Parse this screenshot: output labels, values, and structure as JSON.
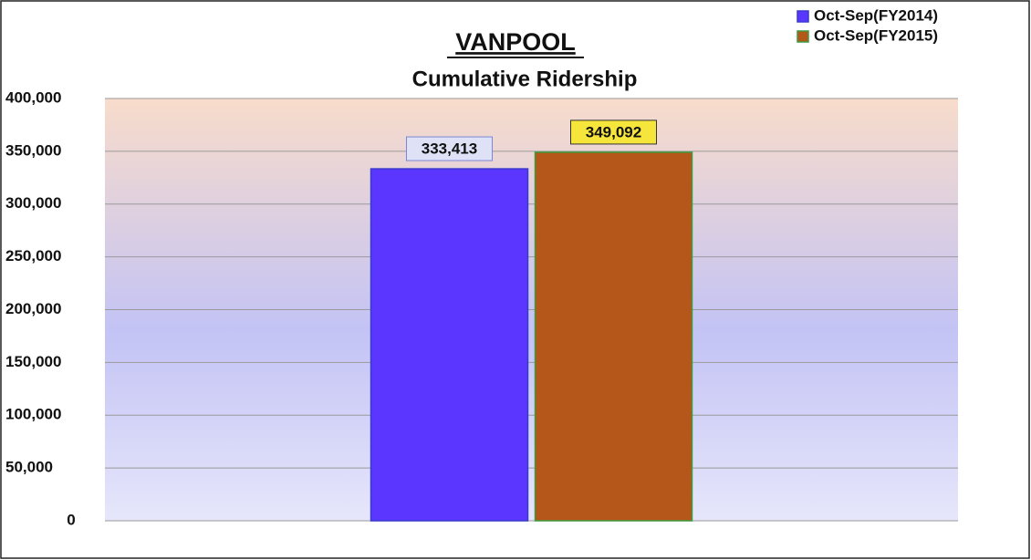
{
  "chart_data": {
    "type": "bar",
    "title": "VANPOOL",
    "subtitle": "Cumulative Ridership",
    "categories": [
      null
    ],
    "series": [
      {
        "name": "Oct-Sep(FY2014)",
        "color": "#5a36ff",
        "edge_color": "#3a3acc",
        "label_fill": "#dfe2f6",
        "label_edge": "#7a86d8",
        "values": [
          333413
        ],
        "value_labels": [
          "333,413"
        ]
      },
      {
        "name": "Oct-Sep(FY2015)",
        "color": "#b5561a",
        "edge_color": "#3d9a3d",
        "label_fill": "#f6e53a",
        "label_edge": "#333333",
        "values": [
          349092
        ],
        "value_labels": [
          "349,092"
        ]
      }
    ],
    "ylim": [
      0,
      400000
    ],
    "yticks": [
      0,
      {
        "value": 50000,
        "label": "50,000"
      },
      {
        "value": 100000,
        "label": "100,000"
      },
      {
        "value": 150000,
        "label": "150,000"
      },
      {
        "value": 200000,
        "label": "200,000"
      },
      {
        "value": 250000,
        "label": "250,000"
      },
      {
        "value": 300000,
        "label": "300,000"
      },
      {
        "value": 350000,
        "label": "350,000"
      },
      {
        "value": 400000,
        "label": "400,000"
      }
    ],
    "grid": true,
    "legend": "top-right"
  }
}
